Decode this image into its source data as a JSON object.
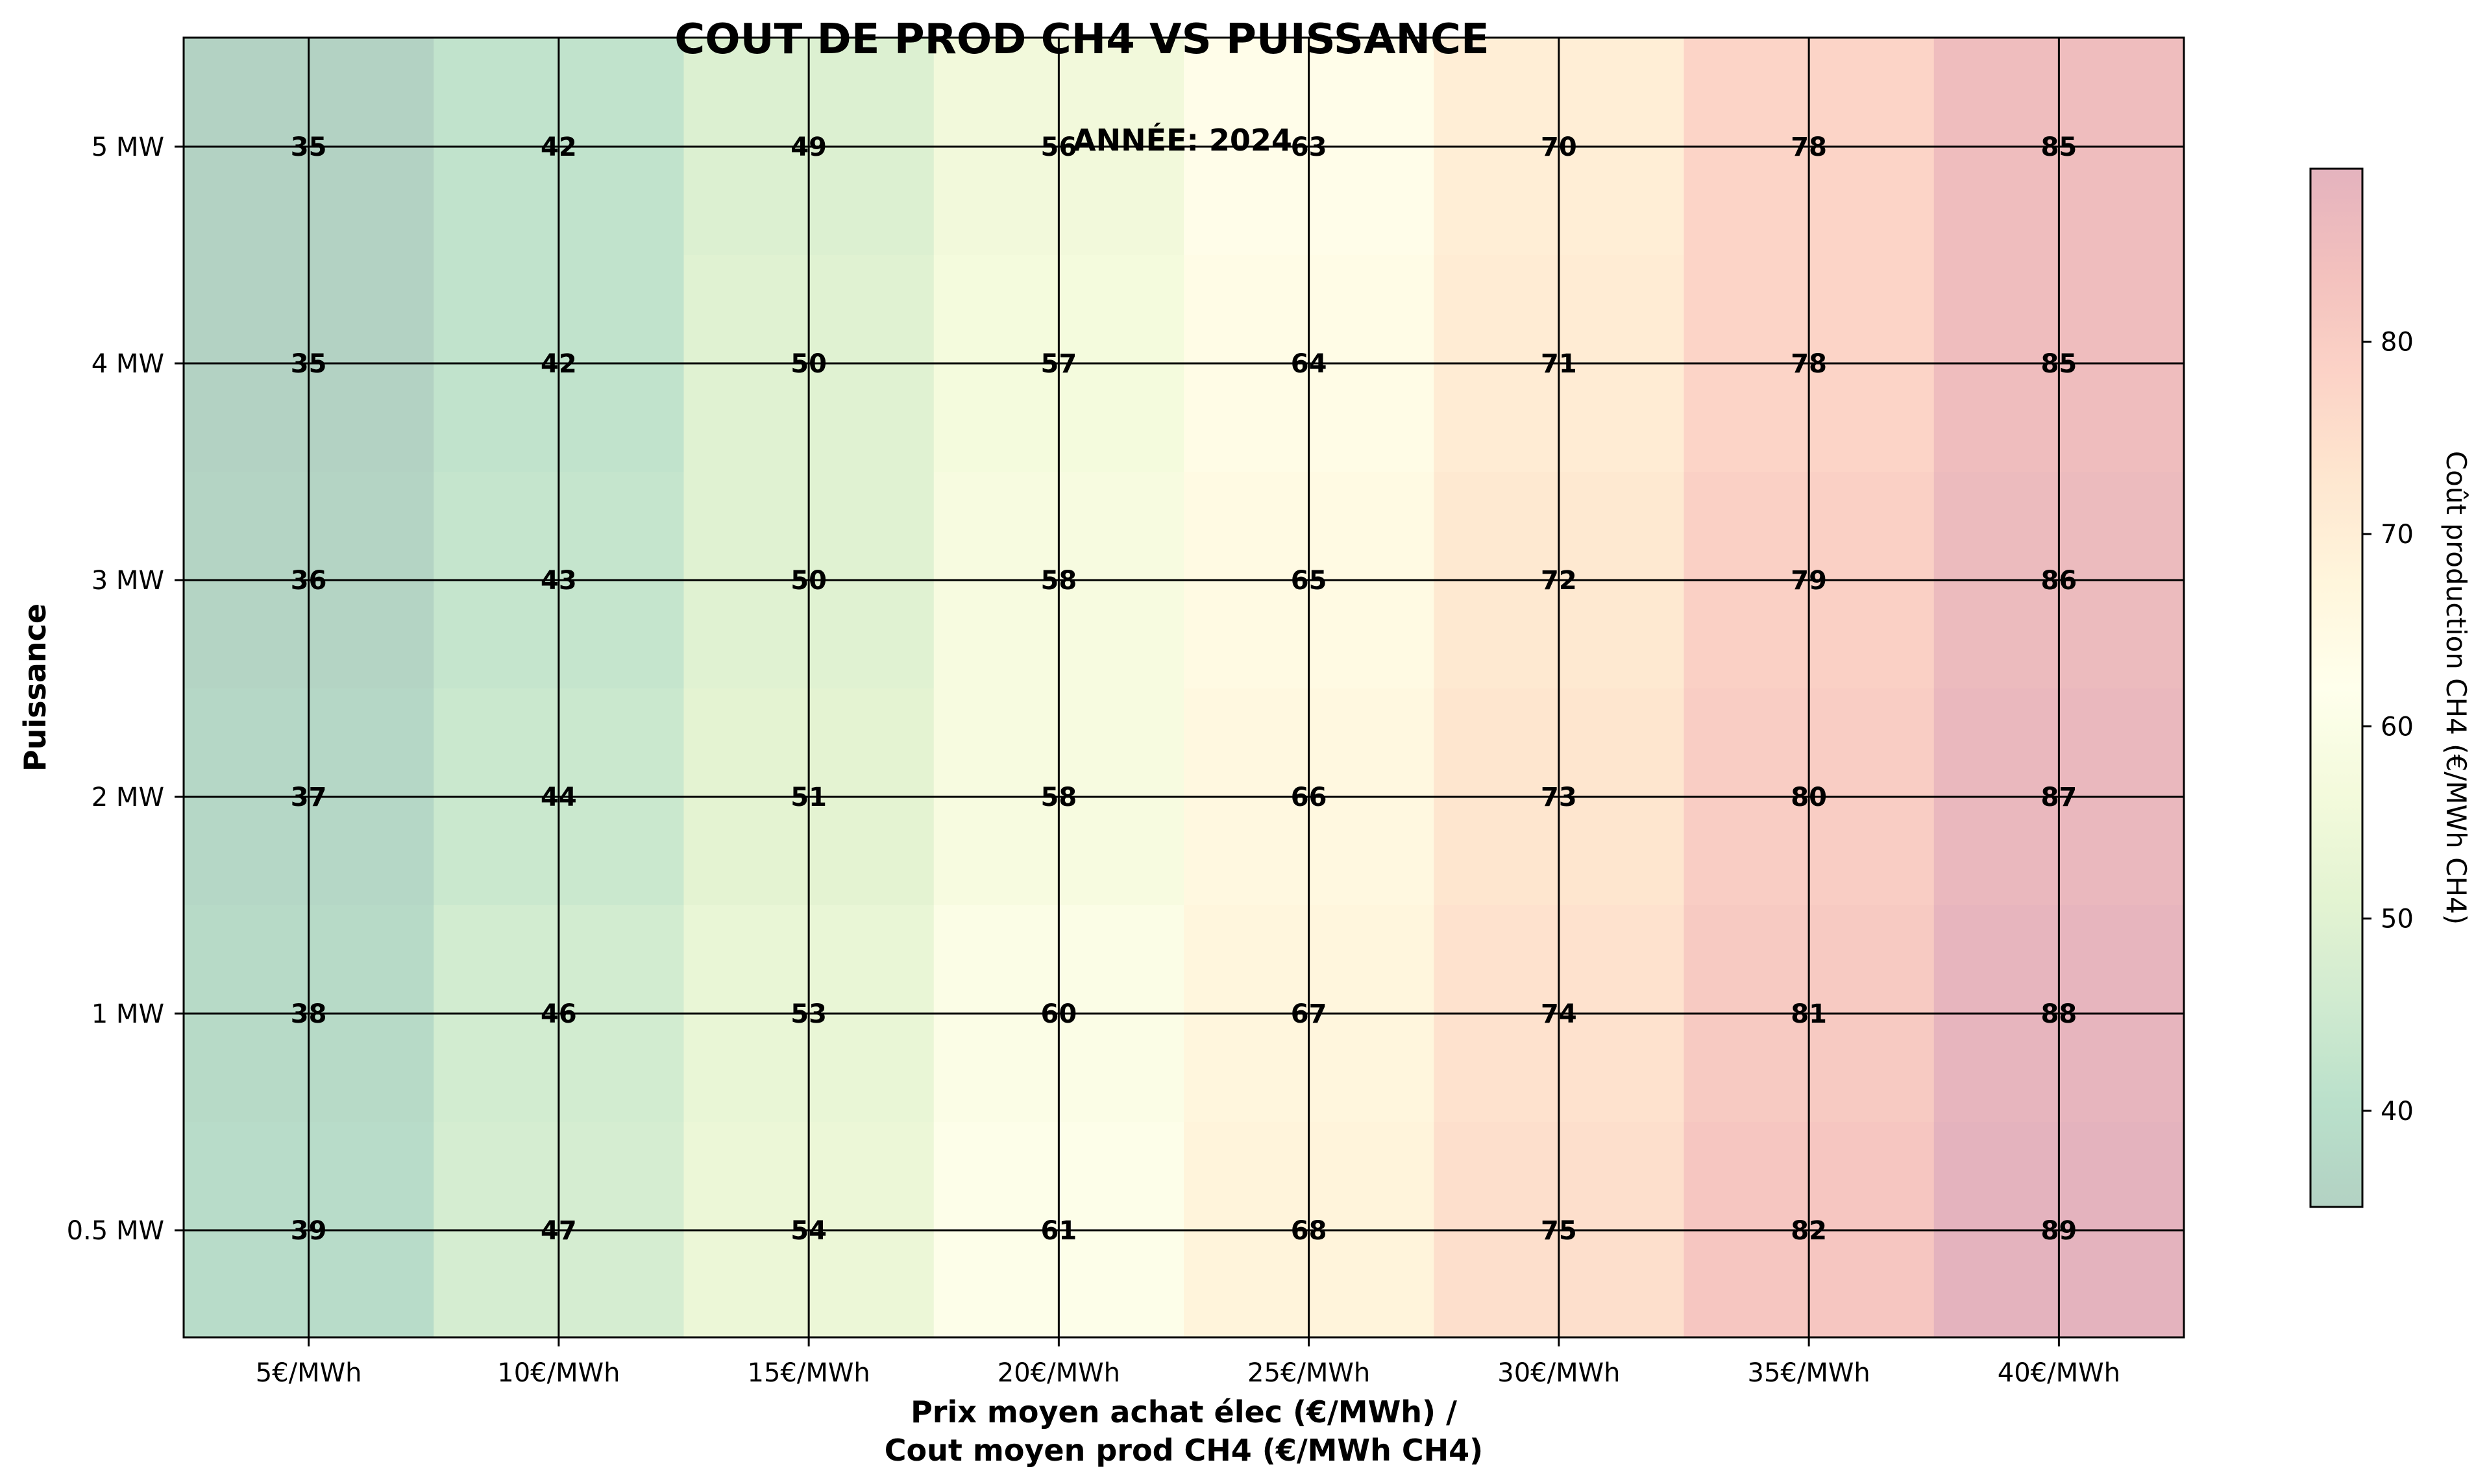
{
  "chart_data": {
    "type": "heatmap",
    "title": "COUT DE PROD CH4 VS PUISSANCE",
    "subtitle": "ANNÉE: 2024",
    "xlabel_line1": "Prix moyen achat élec (€/MWh) /",
    "xlabel_line2": "Cout moyen prod CH4 (€/MWh CH4)",
    "ylabel": "Puissance",
    "colorbar_label": "Coût production CH4 (€/MWh CH4)",
    "x_categories": [
      "5€/MWh",
      "10€/MWh",
      "15€/MWh",
      "20€/MWh",
      "25€/MWh",
      "30€/MWh",
      "35€/MWh",
      "40€/MWh"
    ],
    "y_categories_top_to_bottom": [
      "5 MW",
      "4 MW",
      "3 MW",
      "2 MW",
      "1 MW",
      "0.5 MW"
    ],
    "values": [
      [
        35,
        42,
        49,
        56,
        63,
        70,
        78,
        85
      ],
      [
        35,
        42,
        50,
        57,
        64,
        71,
        78,
        85
      ],
      [
        36,
        43,
        50,
        58,
        65,
        72,
        79,
        86
      ],
      [
        37,
        44,
        51,
        58,
        66,
        73,
        80,
        87
      ],
      [
        38,
        46,
        53,
        60,
        67,
        74,
        81,
        88
      ],
      [
        39,
        47,
        54,
        61,
        68,
        75,
        82,
        89
      ]
    ],
    "color_range": [
      35,
      89
    ],
    "colorbar_ticks": [
      40,
      50,
      60,
      70,
      80
    ],
    "colormap": [
      "#006837",
      "#1a9850",
      "#66bd63",
      "#a6d96a",
      "#d9ef8b",
      "#ffffbf",
      "#fee08b",
      "#fdae61",
      "#f46d43",
      "#d73027",
      "#a50026"
    ],
    "grid": true
  }
}
